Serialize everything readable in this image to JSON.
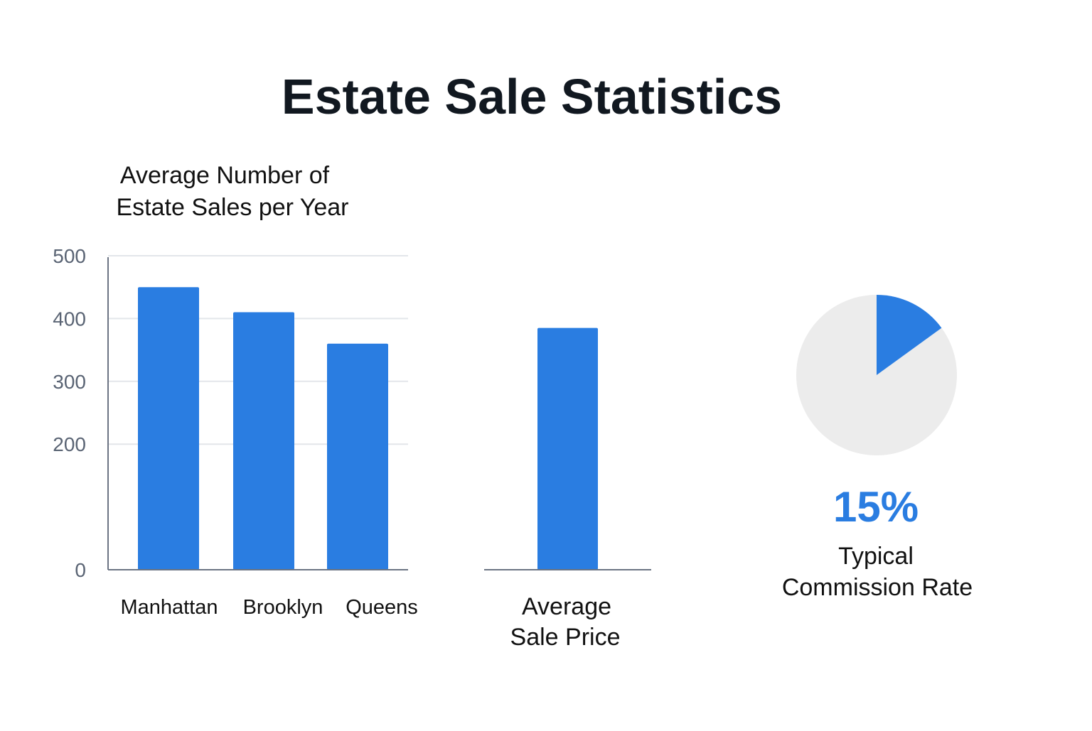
{
  "title": "Estate Sale Statistics",
  "colors": {
    "accent": "#2a7de1",
    "pie_background": "#ececec",
    "axis": "#6b7483",
    "grid": "#e3e6ea",
    "tick_text": "#5a6474",
    "text": "#111111"
  },
  "chart_data": [
    {
      "type": "bar",
      "title_lines": [
        "Average Number of",
        "Estate Sales per Year"
      ],
      "categories": [
        "Manhattan",
        "Brooklyn",
        "Queens"
      ],
      "values": [
        450,
        410,
        360
      ],
      "ylim": [
        0,
        500
      ],
      "yticks": [
        0,
        200,
        300,
        400,
        500
      ],
      "grid": true,
      "xlabel": "",
      "ylabel": ""
    },
    {
      "type": "bar",
      "categories": [
        ""
      ],
      "values": [
        385
      ],
      "ylim": [
        0,
        500
      ],
      "xlabel_lines": [
        "Average",
        "Sale Price"
      ],
      "grid": false
    },
    {
      "type": "pie",
      "slices": [
        {
          "label": "Typical Commission Rate",
          "value": 15
        },
        {
          "label": "",
          "value": 85
        }
      ],
      "value_label": "15%",
      "caption_lines": [
        "Typical",
        "Commission Rate"
      ]
    }
  ]
}
